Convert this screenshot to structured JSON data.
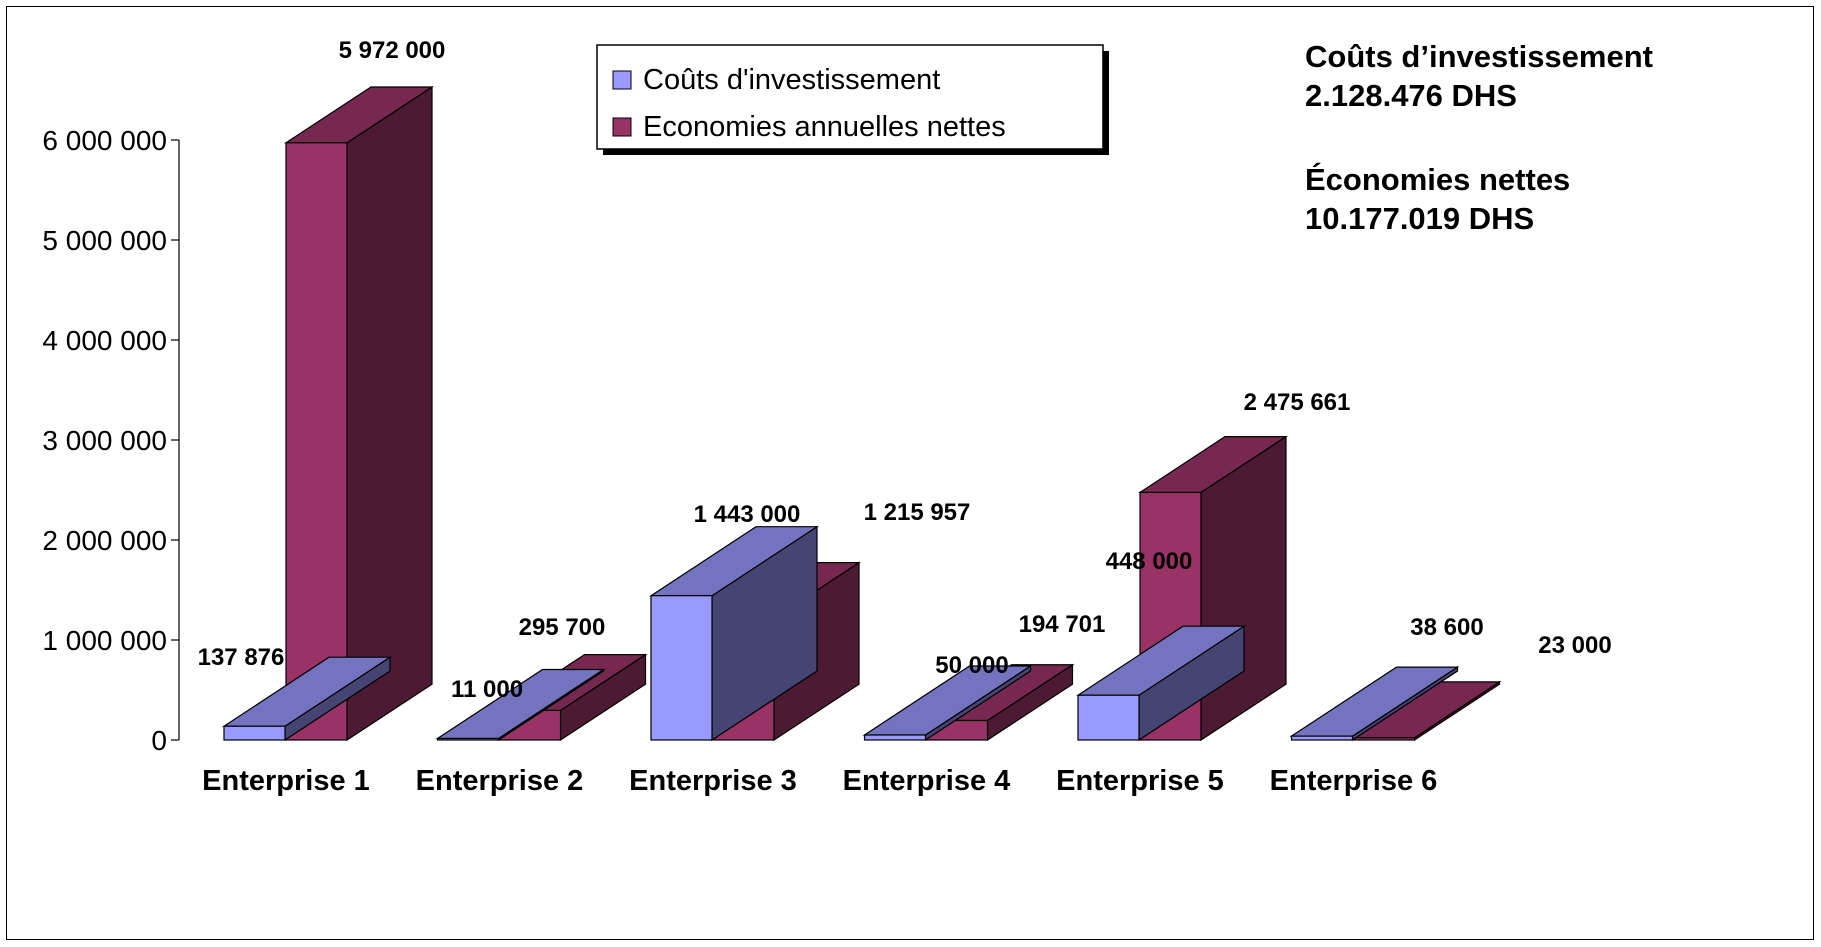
{
  "summary": {
    "investment_label": "Coûts d’investissement",
    "investment_value": "2.128.476 DHS",
    "savings_label": "Économies nettes",
    "savings_value": "10.177.019 DHS"
  },
  "chart_data": {
    "type": "bar",
    "title": "",
    "xlabel": "",
    "ylabel": "",
    "ylim": [
      0,
      6000000
    ],
    "yticks": [
      0,
      1000000,
      2000000,
      3000000,
      4000000,
      5000000,
      6000000
    ],
    "ytick_labels": [
      "0",
      "1 000 000",
      "2 000 000",
      "3 000 000",
      "4 000 000",
      "5 000 000",
      "6 000 000"
    ],
    "categories": [
      "Enterprise 1",
      "Enterprise 2",
      "Enterprise 3",
      "Enterprise 4",
      "Enterprise 5",
      "Enterprise 6"
    ],
    "series": [
      {
        "name": "Coûts d'investissement",
        "color": "#9999ff",
        "values": [
          137876,
          11000,
          1443000,
          50000,
          448000,
          38600
        ],
        "labels": [
          "137 876",
          "11 000",
          "1 443 000",
          "50 000",
          "448 000",
          "38 600"
        ]
      },
      {
        "name": "Economies annuelles nettes",
        "color": "#993366",
        "values": [
          5972000,
          295700,
          1215957,
          194701,
          2475661,
          23000
        ],
        "labels": [
          "5 972 000",
          "295 700",
          "1 215 957",
          "194 701",
          "2 475 661",
          "23 000"
        ]
      }
    ],
    "legend_position": "top-center",
    "grid": false,
    "three_d": true
  }
}
